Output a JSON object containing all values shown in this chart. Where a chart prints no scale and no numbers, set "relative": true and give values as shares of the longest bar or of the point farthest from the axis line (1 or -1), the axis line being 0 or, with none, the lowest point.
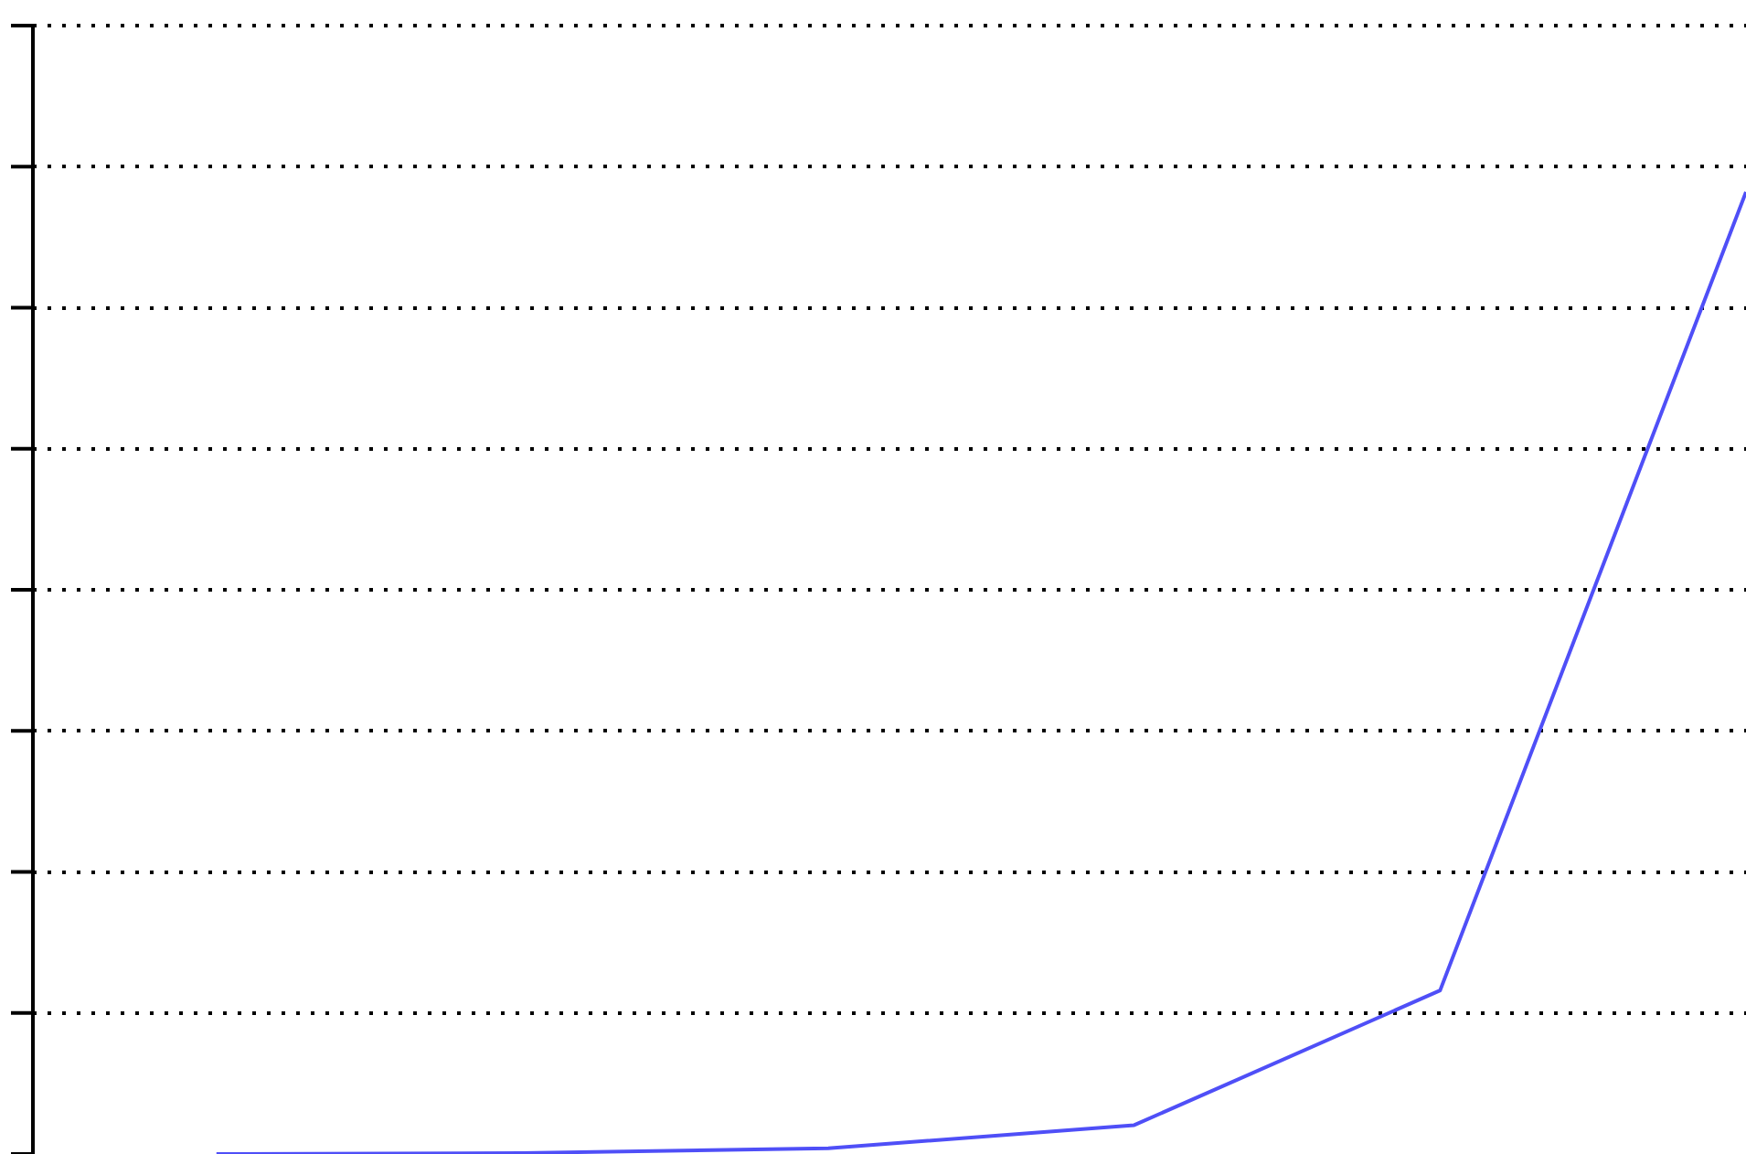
{
  "chart_data": {
    "type": "line",
    "relative": true,
    "categories": [
      null,
      null,
      null,
      null,
      null,
      null
    ],
    "series": [
      {
        "color": "#4f4ff7",
        "values": [
          0,
          0.001,
          0.006,
          0.03,
          0.17,
          1
        ]
      }
    ],
    "grid": "y",
    "legend": false,
    "tick_labels": false,
    "marker": "none",
    "line_style": "solid"
  }
}
